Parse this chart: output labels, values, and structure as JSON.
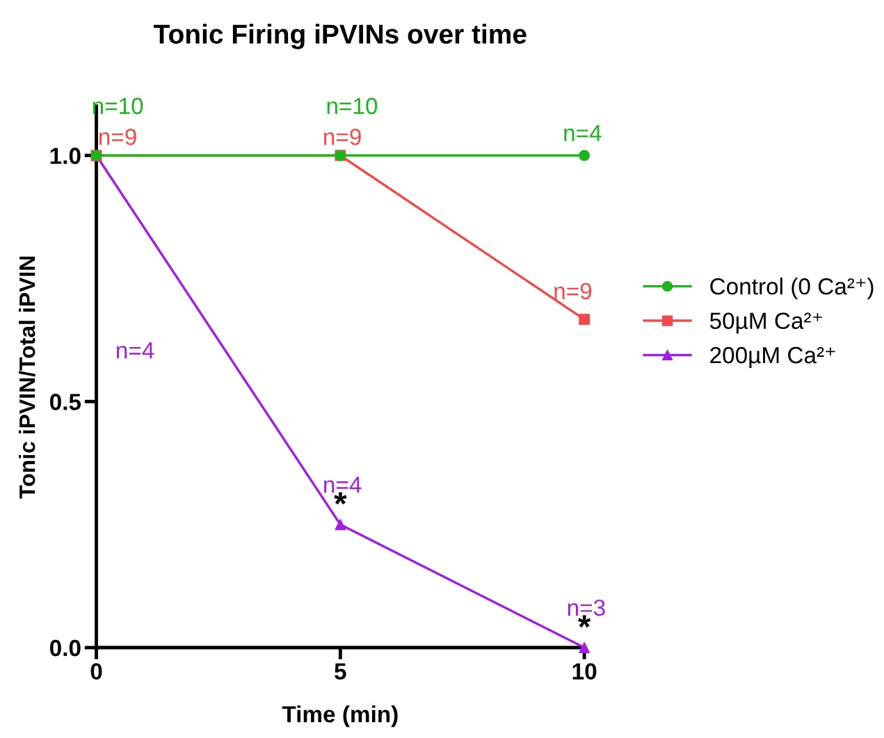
{
  "chart_data": {
    "type": "line",
    "title": "Tonic Firing iPVINs over time",
    "xlabel": "Time (min)",
    "ylabel": "Tonic iPVIN/Total iPVIN",
    "x": [
      0,
      5,
      10
    ],
    "xlim": [
      0,
      10
    ],
    "xticks": [
      0,
      5,
      10
    ],
    "ylim": [
      0,
      1.1
    ],
    "yticks": [
      {
        "value": 0,
        "label": "0.0"
      },
      {
        "value": 0.5,
        "label": "0.5"
      },
      {
        "value": 1,
        "label": "1.0"
      }
    ],
    "series": [
      {
        "name": "Control (0 Ca²⁺)",
        "color": "#1db41d",
        "marker": "circle",
        "values": [
          1,
          1,
          1
        ]
      },
      {
        "name": "50µM Ca²⁺",
        "color": "#f24a4a",
        "marker": "square",
        "values": [
          1,
          1,
          0.667
        ]
      },
      {
        "name": "200µM Ca²⁺",
        "color": "#a31ee0",
        "marker": "triangle",
        "values": [
          1,
          0.25,
          0
        ]
      }
    ],
    "annotations": [
      {
        "text": "n=10",
        "x": 0,
        "y": 1
      },
      {
        "text": "n=10",
        "x": 5,
        "y": 1
      },
      {
        "text": "n=4",
        "x": 10,
        "y": 1
      },
      {
        "text": "n=9",
        "x": 0,
        "y": 1
      },
      {
        "text": "n=9",
        "x": 5,
        "y": 1
      },
      {
        "text": "n=9",
        "x": 10,
        "y": 0.667
      },
      "n=4",
      {
        "text": "n=4",
        "x": 5,
        "y": 0.25
      },
      {
        "text": "n=3",
        "x": 10,
        "y": 0
      },
      {
        "text": "*",
        "x": 5,
        "y": 0.25
      },
      {
        "text": "*",
        "x": 10,
        "y": 0
      }
    ],
    "legend": "right",
    "grid": false,
    "line_style": "solid"
  }
}
